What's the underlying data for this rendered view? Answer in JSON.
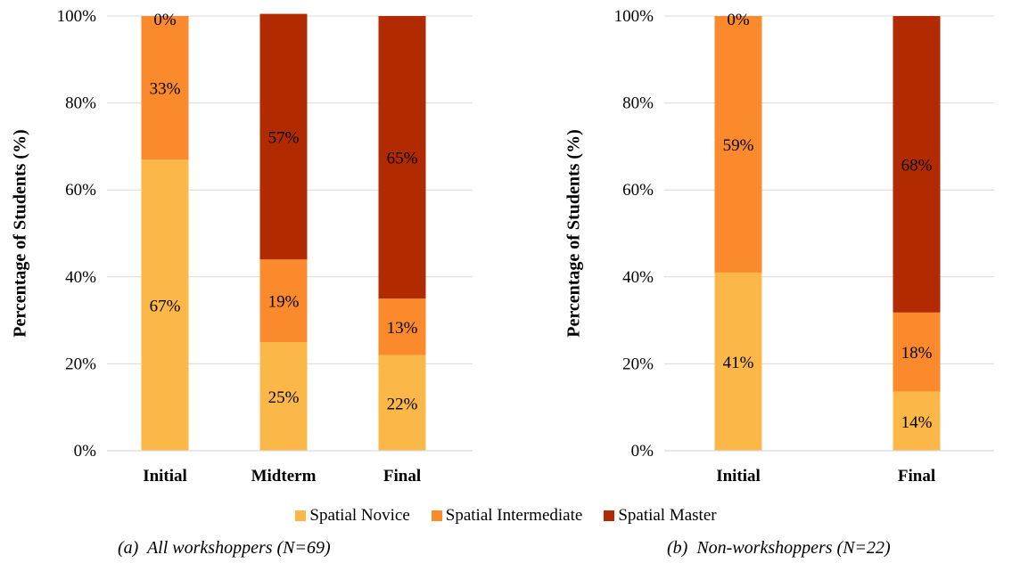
{
  "colors": {
    "novice": "#FBB848",
    "intermediate": "#FB8A2C",
    "master": "#B22A00",
    "grid": "#D9D9D9",
    "axis": "#D9D9D9"
  },
  "legend": {
    "items": [
      {
        "name": "Spatial Novice",
        "color": "#FBB848"
      },
      {
        "name": "Spatial Intermediate",
        "color": "#FB8A2C"
      },
      {
        "name": "Spatial Master",
        "color": "#B22A00"
      }
    ]
  },
  "chart_data": [
    {
      "type": "bar",
      "stacked": true,
      "caption": "(a)  All workshoppers (N=69)",
      "ylabel": "Percentage of Students (%)",
      "xlabel": "",
      "ylim": [
        0,
        100
      ],
      "yticks": [
        "0%",
        "20%",
        "40%",
        "60%",
        "80%",
        "100%"
      ],
      "grid": true,
      "legend_position": "bottom",
      "categories": [
        "Initial",
        "Midterm",
        "Final"
      ],
      "series": [
        {
          "name": "Spatial Novice",
          "values": [
            67,
            25,
            22
          ],
          "labels": [
            "67%",
            "25%",
            "22%"
          ]
        },
        {
          "name": "Spatial Intermediate",
          "values": [
            33,
            19,
            13
          ],
          "labels": [
            "33%",
            "19%",
            "13%"
          ]
        },
        {
          "name": "Spatial Master",
          "values": [
            0,
            56.5,
            65
          ],
          "labels": [
            "0%",
            "57%",
            "65%"
          ]
        }
      ]
    },
    {
      "type": "bar",
      "stacked": true,
      "caption": "(b)  Non-workshoppers (N=22)",
      "ylabel": "Percentage of Students (%)",
      "xlabel": "",
      "ylim": [
        0,
        100
      ],
      "yticks": [
        "0%",
        "20%",
        "40%",
        "60%",
        "80%",
        "100%"
      ],
      "grid": true,
      "legend_position": "bottom",
      "categories": [
        "Initial",
        "Final"
      ],
      "series": [
        {
          "name": "Spatial Novice",
          "values": [
            41,
            13.6
          ],
          "labels": [
            "41%",
            "14%"
          ]
        },
        {
          "name": "Spatial Intermediate",
          "values": [
            59,
            18.2
          ],
          "labels": [
            "59%",
            "18%"
          ]
        },
        {
          "name": "Spatial Master",
          "values": [
            0,
            68.2
          ],
          "labels": [
            "0%",
            "68%"
          ]
        }
      ]
    }
  ]
}
